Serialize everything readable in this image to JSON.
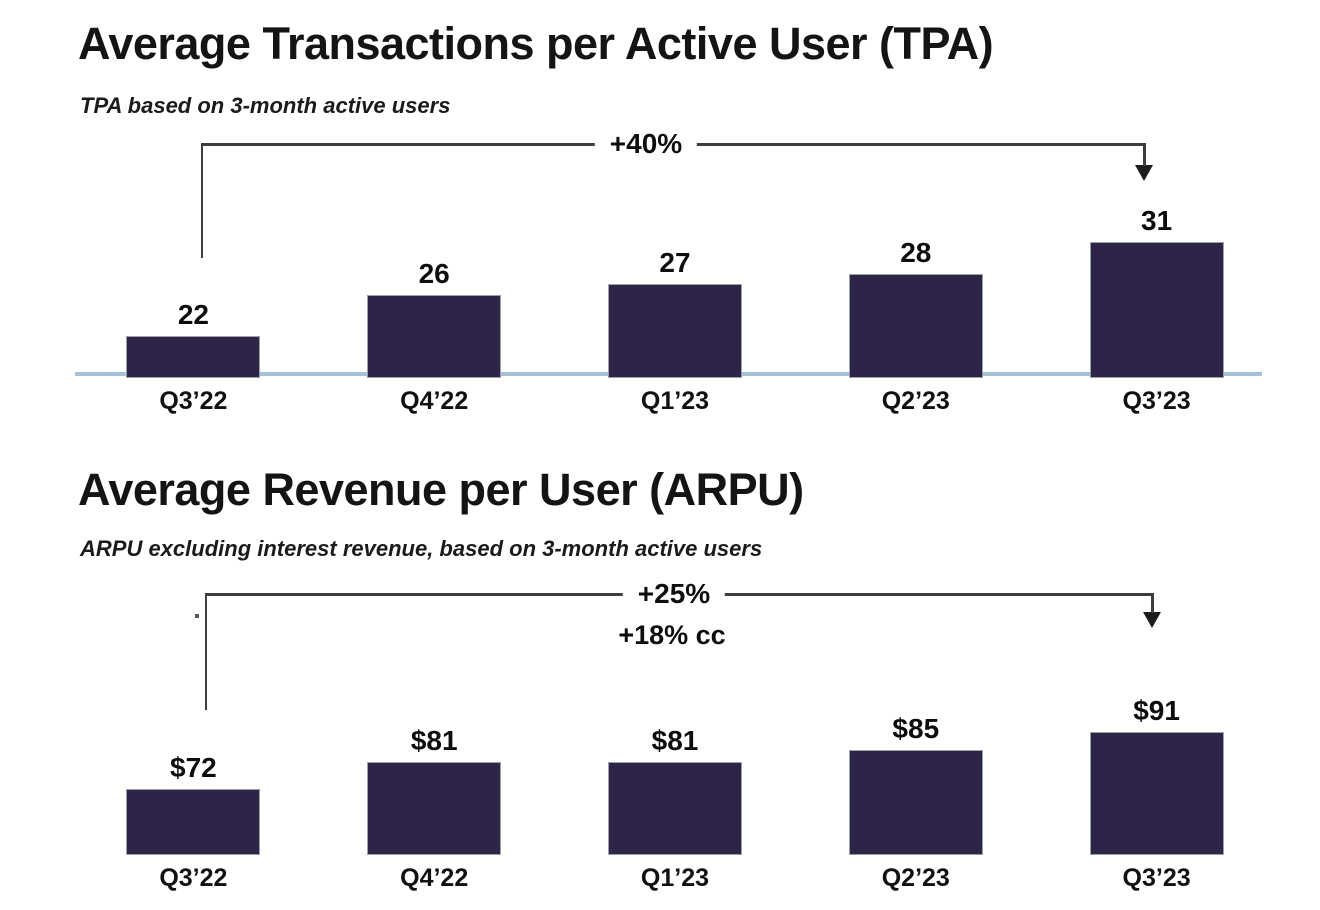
{
  "page": {
    "background": "#FFFFFF"
  },
  "chart_data": [
    {
      "type": "bar",
      "title": "Average Transactions per Active User (TPA)",
      "subtitle": "TPA based on 3-month active users",
      "categories": [
        "Q3’22",
        "Q4’22",
        "Q1’23",
        "Q2’23",
        "Q3’23"
      ],
      "values": [
        22,
        26,
        27,
        28,
        31
      ],
      "value_labels": [
        "22",
        "26",
        "27",
        "28",
        "31"
      ],
      "xlabel": "",
      "ylabel": "",
      "ylim": [
        18,
        32
      ],
      "grid": false,
      "legend": "none",
      "baseline_axis_visible": true,
      "annotation": {
        "label": "+40%",
        "from": "Q3’22",
        "to": "Q3’23"
      },
      "bar_color": "#2D2447",
      "bar_border_color": "#9BA0AE",
      "axis_line_color": "#A6C0D6",
      "annotation_line_color": "#3E3E3E",
      "text_color": "#111111"
    },
    {
      "type": "bar",
      "title": "Average Revenue per User (ARPU)",
      "subtitle": "ARPU excluding interest revenue, based on 3-month active users",
      "categories": [
        "Q3’22",
        "Q4’22",
        "Q1’23",
        "Q2’23",
        "Q3’23"
      ],
      "values": [
        72,
        81,
        81,
        85,
        91
      ],
      "value_labels": [
        "$72",
        "$81",
        "$81",
        "$85",
        "$91"
      ],
      "xlabel": "",
      "ylabel": "",
      "ylim": [
        50,
        92
      ],
      "grid": false,
      "legend": "none",
      "baseline_axis_visible": false,
      "annotation": {
        "label": "+25%",
        "sublabel": "+18% cc",
        "from": "Q3’22",
        "to": "Q3’23"
      },
      "bar_color": "#2D2447",
      "bar_border_color": "#9BA0AE",
      "axis_line_color": "#A6C0D6",
      "annotation_line_color": "#3E3E3E",
      "text_color": "#111111"
    }
  ]
}
